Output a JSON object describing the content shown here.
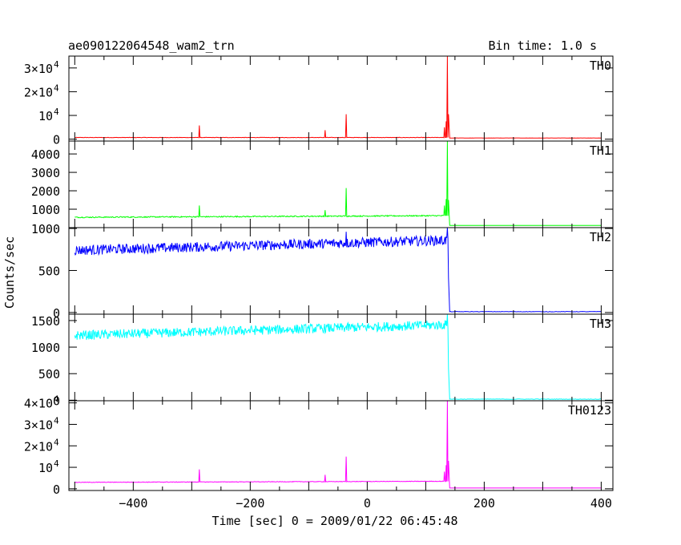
{
  "header": {
    "title": "ae090122064548_wam2_trn",
    "bin_time": "Bin time: 1.0 s"
  },
  "chart_data": {
    "type": "line",
    "title": "ae090122064548_wam2_trn",
    "xlabel": "Time [sec] 0 = 2009/01/22 06:45:48",
    "ylabel": "Counts/sec",
    "xlim": [
      -510,
      420
    ],
    "x_ticks": [
      {
        "value": -400,
        "label": "−400"
      },
      {
        "value": -200,
        "label": "−200"
      },
      {
        "value": 0,
        "label": "0"
      },
      {
        "value": 200,
        "label": "200"
      },
      {
        "value": 400,
        "label": "400"
      }
    ],
    "panels": [
      {
        "name": "TH0",
        "color": "#ff0000",
        "ylim": [
          -800,
          35000
        ],
        "yticks": [
          {
            "value": 0,
            "base": "0",
            "exp": ""
          },
          {
            "value": 10000,
            "base": "10",
            "exp": "4"
          },
          {
            "value": 20000,
            "base": "2×10",
            "exp": "4"
          },
          {
            "value": 30000,
            "base": "3×10",
            "exp": "4"
          }
        ],
        "baseline_pre": 700,
        "baseline_post": 500,
        "noise": 80,
        "spikes": [
          [
            -287,
            5800
          ],
          [
            -72,
            3800
          ],
          [
            -36,
            10500
          ],
          [
            132,
            5000
          ],
          [
            135,
            7500
          ],
          [
            137,
            34900
          ],
          [
            139,
            10500
          ]
        ]
      },
      {
        "name": "TH1",
        "color": "#00ff00",
        "ylim": [
          0,
          4700
        ],
        "yticks": [
          {
            "value": 1000,
            "base": "1000",
            "exp": ""
          },
          {
            "value": 2000,
            "base": "2000",
            "exp": ""
          },
          {
            "value": 3000,
            "base": "3000",
            "exp": ""
          },
          {
            "value": 4000,
            "base": "4000",
            "exp": ""
          }
        ],
        "baseline_pre": 560,
        "baseline_end": 650,
        "baseline_post": 120,
        "noise": 30,
        "spikes": [
          [
            -287,
            1200
          ],
          [
            -72,
            950
          ],
          [
            -36,
            2150
          ],
          [
            132,
            1200
          ],
          [
            135,
            1550
          ],
          [
            137,
            4700
          ],
          [
            139,
            1500
          ]
        ]
      },
      {
        "name": "TH2",
        "color": "#0000ff",
        "ylim": [
          -20,
          1010
        ],
        "yticks": [
          {
            "value": 0,
            "base": "0",
            "exp": ""
          },
          {
            "value": 500,
            "base": "500",
            "exp": ""
          },
          {
            "value": 1000,
            "base": "1000",
            "exp": ""
          }
        ],
        "baseline_pre": 740,
        "baseline_end": 860,
        "baseline_post": 10,
        "noise": 60,
        "spikes": [
          [
            -36,
            960
          ],
          [
            137,
            1010
          ],
          [
            139,
            410
          ]
        ]
      },
      {
        "name": "TH3",
        "color": "#00ffff",
        "ylim": [
          -10,
          1620
        ],
        "yticks": [
          {
            "value": 0,
            "base": "0",
            "exp": ""
          },
          {
            "value": 500,
            "base": "500",
            "exp": ""
          },
          {
            "value": 1000,
            "base": "1000",
            "exp": ""
          },
          {
            "value": 1500,
            "base": "1500",
            "exp": ""
          }
        ],
        "baseline_pre": 1220,
        "baseline_end": 1420,
        "baseline_post": 20,
        "noise": 90,
        "spikes": [
          [
            137,
            1620
          ],
          [
            139,
            600
          ]
        ]
      },
      {
        "name": "TH0123",
        "color": "#ff00ff",
        "ylim": [
          -800,
          41000
        ],
        "yticks": [
          {
            "value": 0,
            "base": "0",
            "exp": ""
          },
          {
            "value": 10000,
            "base": "10",
            "exp": "4"
          },
          {
            "value": 20000,
            "base": "2×10",
            "exp": "4"
          },
          {
            "value": 30000,
            "base": "3×10",
            "exp": "4"
          },
          {
            "value": 40000,
            "base": "4×10",
            "exp": "4"
          }
        ],
        "baseline_pre": 3000,
        "baseline_end": 3500,
        "baseline_post": 350,
        "noise": 120,
        "spikes": [
          [
            -287,
            9000
          ],
          [
            -72,
            6500
          ],
          [
            -36,
            15000
          ],
          [
            132,
            8000
          ],
          [
            135,
            11000
          ],
          [
            137,
            41000
          ],
          [
            139,
            13000
          ]
        ]
      }
    ]
  }
}
